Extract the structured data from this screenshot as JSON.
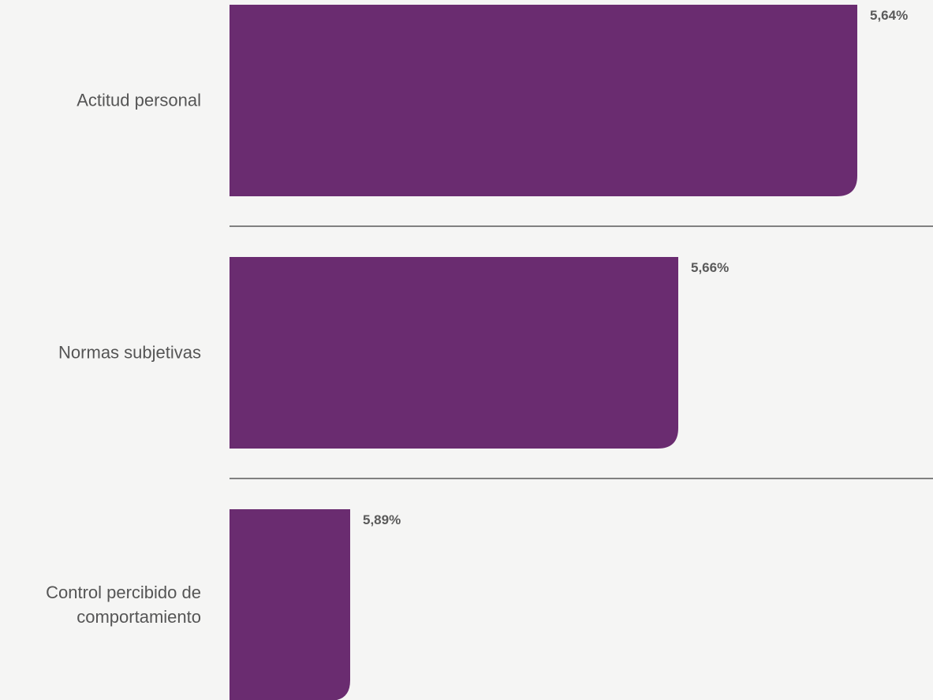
{
  "chart_data": {
    "type": "bar",
    "orientation": "horizontal",
    "categories": [
      [
        "Actitud personal"
      ],
      [
        "Normas subjetivas"
      ],
      [
        "Control percibido de",
        "comportamiento"
      ]
    ],
    "values": [
      5.64,
      5.66,
      5.89
    ],
    "value_labels": [
      "5,64%",
      "5,66%",
      "5,89%"
    ],
    "bar_color": "#6a2c70",
    "title": "",
    "xlabel": "",
    "ylabel": "",
    "grid": false,
    "legend": "none"
  }
}
